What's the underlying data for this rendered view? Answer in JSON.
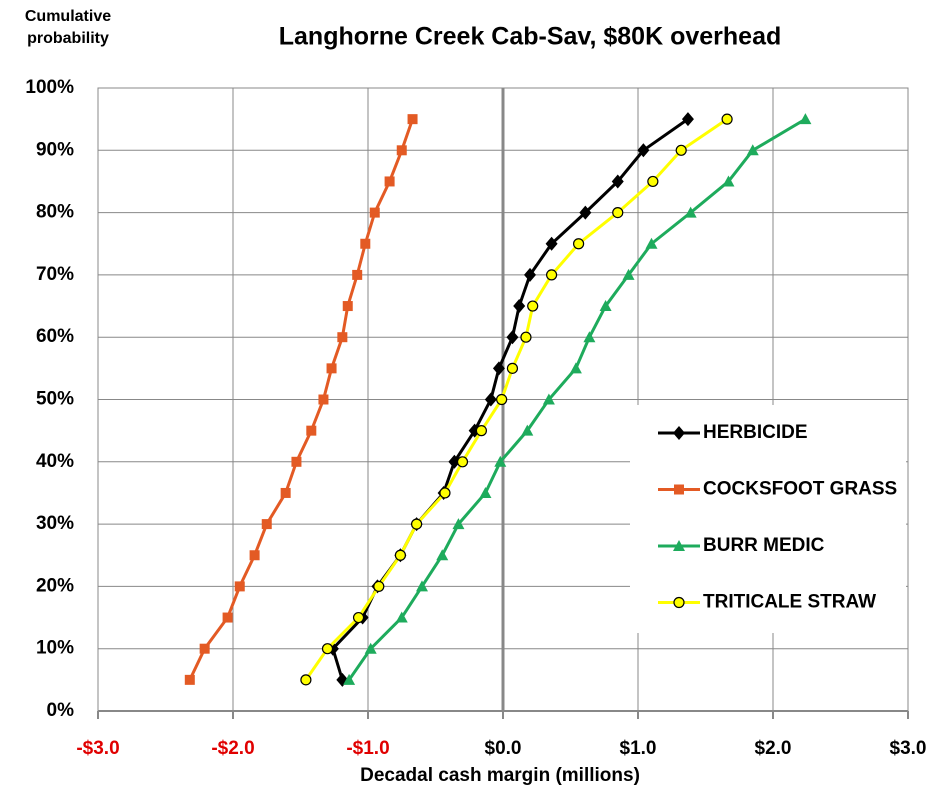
{
  "chart_data": {
    "type": "line",
    "title": "Langhorne Creek Cab-Sav, $80K overhead",
    "y_label": "Cumulative probability",
    "x_label": "Decadal cash margin (millions)",
    "xlim": [
      -3,
      3
    ],
    "ylim": [
      0,
      100
    ],
    "xticks": [
      {
        "value": -3,
        "label": "-$3.0"
      },
      {
        "value": -2,
        "label": "-$2.0"
      },
      {
        "value": -1,
        "label": "-$1.0"
      },
      {
        "value": 0,
        "label": "$0.0"
      },
      {
        "value": 1,
        "label": "$1.0"
      },
      {
        "value": 2,
        "label": "$2.0"
      },
      {
        "value": 3,
        "label": "$3.0"
      }
    ],
    "yticks": [
      {
        "value": 0,
        "label": "0%"
      },
      {
        "value": 10,
        "label": "10%"
      },
      {
        "value": 20,
        "label": "20%"
      },
      {
        "value": 30,
        "label": "30%"
      },
      {
        "value": 40,
        "label": "40%"
      },
      {
        "value": 50,
        "label": "50%"
      },
      {
        "value": 60,
        "label": "60%"
      },
      {
        "value": 70,
        "label": "70%"
      },
      {
        "value": 80,
        "label": "80%"
      },
      {
        "value": 90,
        "label": "90%"
      },
      {
        "value": 100,
        "label": "100%"
      }
    ],
    "grid": true,
    "negative_tick_color": "#e00000",
    "legend": "right",
    "series": [
      {
        "name": "HERBICIDE",
        "color": "#000000",
        "marker": "diamond",
        "x": [
          -1.19,
          -1.26,
          -1.04,
          -0.93,
          -0.76,
          -0.64,
          -0.44,
          -0.36,
          -0.21,
          -0.09,
          -0.03,
          0.07,
          0.12,
          0.2,
          0.36,
          0.61,
          0.85,
          1.04,
          1.37
        ],
        "values": [
          5,
          10,
          15,
          20,
          25,
          30,
          35,
          40,
          45,
          50,
          55,
          60,
          65,
          70,
          75,
          80,
          85,
          90,
          95
        ]
      },
      {
        "name": "COCKSFOOT GRASS",
        "color": "#e35a24",
        "marker": "square",
        "x": [
          -2.32,
          -2.21,
          -2.04,
          -1.95,
          -1.84,
          -1.75,
          -1.61,
          -1.53,
          -1.42,
          -1.33,
          -1.27,
          -1.19,
          -1.15,
          -1.08,
          -1.02,
          -0.95,
          -0.84,
          -0.75,
          -0.67
        ],
        "values": [
          5,
          10,
          15,
          20,
          25,
          30,
          35,
          40,
          45,
          50,
          55,
          60,
          65,
          70,
          75,
          80,
          85,
          90,
          95
        ]
      },
      {
        "name": "BURR MEDIC",
        "color": "#1eab5c",
        "marker": "triangle",
        "x": [
          -1.14,
          -0.98,
          -0.75,
          -0.6,
          -0.45,
          -0.33,
          -0.13,
          -0.02,
          0.18,
          0.34,
          0.54,
          0.64,
          0.76,
          0.93,
          1.1,
          1.39,
          1.67,
          1.85,
          2.24
        ],
        "values": [
          5,
          10,
          15,
          20,
          25,
          30,
          35,
          40,
          45,
          50,
          55,
          60,
          65,
          70,
          75,
          80,
          85,
          90,
          95
        ]
      },
      {
        "name": "TRITICALE STRAW",
        "color": "#ffff00",
        "marker": "circle",
        "x": [
          -1.46,
          -1.3,
          -1.07,
          -0.92,
          -0.76,
          -0.64,
          -0.43,
          -0.3,
          -0.16,
          -0.01,
          0.07,
          0.17,
          0.22,
          0.36,
          0.56,
          0.85,
          1.11,
          1.32,
          1.66
        ],
        "values": [
          5,
          10,
          15,
          20,
          25,
          30,
          35,
          40,
          45,
          50,
          55,
          60,
          65,
          70,
          75,
          80,
          85,
          90,
          95
        ]
      }
    ]
  }
}
